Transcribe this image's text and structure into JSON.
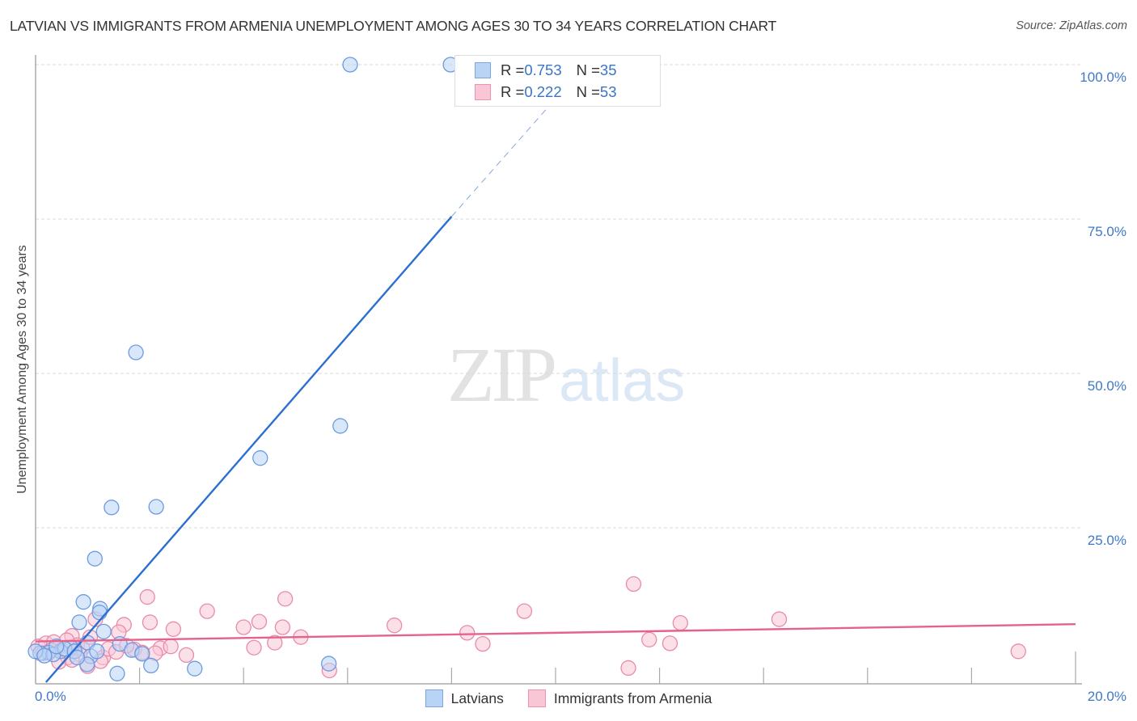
{
  "header": {
    "title": "LATVIAN VS IMMIGRANTS FROM ARMENIA UNEMPLOYMENT AMONG AGES 30 TO 34 YEARS CORRELATION CHART",
    "source": "Source: ZipAtlas.com"
  },
  "watermark": {
    "zip": "ZIP",
    "atlas": "atlas"
  },
  "axes": {
    "y_label": "Unemployment Among Ages 30 to 34 years",
    "y_ticks": [
      "100.0%",
      "75.0%",
      "50.0%",
      "25.0%"
    ],
    "x_min_label": "0.0%",
    "x_max_label": "20.0%"
  },
  "legend": {
    "series": [
      {
        "r_label": "R = ",
        "r_value": "0.753",
        "n_label": "N = ",
        "n_value": "35"
      },
      {
        "r_label": "R = ",
        "r_value": "0.222",
        "n_label": "N = ",
        "n_value": "53"
      }
    ],
    "bottom": [
      "Latvians",
      "Immigrants from Armenia"
    ]
  },
  "colors": {
    "blue_fill": "#b9d3f5",
    "blue_stroke": "#6b9be0",
    "blue_line": "#2b6fd1",
    "pink_fill": "#fac6d6",
    "pink_stroke": "#e98aab",
    "pink_line": "#e4628c",
    "tick_text": "#3f78c9"
  },
  "chart_data": {
    "type": "scatter",
    "title": "LATVIAN VS IMMIGRANTS FROM ARMENIA UNEMPLOYMENT AMONG AGES 30 TO 34 YEARS CORRELATION CHART",
    "xlabel": "",
    "ylabel": "Unemployment Among Ages 30 to 34 years",
    "xlim": [
      0,
      20
    ],
    "ylim": [
      0,
      100
    ],
    "x_ticks": [
      0,
      2,
      4,
      6,
      8,
      10,
      12,
      14,
      16,
      18,
      20
    ],
    "x_tick_labels_shown": [
      "0.0%",
      "20.0%"
    ],
    "y_ticks": [
      25,
      50,
      75,
      100
    ],
    "y_tick_labels": [
      "25.0%",
      "50.0%",
      "75.0%",
      "100.0%"
    ],
    "grid": "horizontal dashed at y ticks",
    "legend_position": "top-center (stats) and bottom-center (series names)",
    "series": [
      {
        "name": "Latvians",
        "R": 0.753,
        "N": 35,
        "trendline": {
          "x0": 0.2,
          "y0": 0.0,
          "x1": 8.0,
          "y1": 75.4,
          "dashed_extension_to": [
            10.0,
            94.5
          ]
        },
        "points": [
          [
            6.05,
            100
          ],
          [
            7.98,
            100
          ],
          [
            1.93,
            53.4
          ],
          [
            5.86,
            41.5
          ],
          [
            4.32,
            36.3
          ],
          [
            1.46,
            28.3
          ],
          [
            2.32,
            28.4
          ],
          [
            1.14,
            20.0
          ],
          [
            0.92,
            13.0
          ],
          [
            1.24,
            11.9
          ],
          [
            1.23,
            11.3
          ],
          [
            0.84,
            9.7
          ],
          [
            1.31,
            8.2
          ],
          [
            1.62,
            6.2
          ],
          [
            1.85,
            5.2
          ],
          [
            1.0,
            6.4
          ],
          [
            0.68,
            5.6
          ],
          [
            0.48,
            5.0
          ],
          [
            0.25,
            4.8
          ],
          [
            0.09,
            4.7
          ],
          [
            0.0,
            5.0
          ],
          [
            0.34,
            4.5
          ],
          [
            0.56,
            5.4
          ],
          [
            0.75,
            5.0
          ],
          [
            1.06,
            4.2
          ],
          [
            2.05,
            4.6
          ],
          [
            0.99,
            2.9
          ],
          [
            1.57,
            1.4
          ],
          [
            2.22,
            2.7
          ],
          [
            3.06,
            2.2
          ],
          [
            5.64,
            3.0
          ],
          [
            0.17,
            4.3
          ],
          [
            0.4,
            5.8
          ],
          [
            0.8,
            4.0
          ],
          [
            1.18,
            5.0
          ]
        ]
      },
      {
        "name": "Immigrants from Armenia",
        "R": 0.222,
        "N": 53,
        "trendline": {
          "x0": 0.0,
          "y0": 6.6,
          "x1": 20.0,
          "y1": 9.4
        },
        "points": [
          [
            0.05,
            5.8
          ],
          [
            0.2,
            6.3
          ],
          [
            0.35,
            6.5
          ],
          [
            0.5,
            5.2
          ],
          [
            0.62,
            4.0
          ],
          [
            0.7,
            7.5
          ],
          [
            0.8,
            6.0
          ],
          [
            0.9,
            5.5
          ],
          [
            1.05,
            7.3
          ],
          [
            1.15,
            10.2
          ],
          [
            1.0,
            2.6
          ],
          [
            1.3,
            4.0
          ],
          [
            1.4,
            5.4
          ],
          [
            1.55,
            4.9
          ],
          [
            1.7,
            9.3
          ],
          [
            1.9,
            5.3
          ],
          [
            2.05,
            4.8
          ],
          [
            2.15,
            13.8
          ],
          [
            2.2,
            9.7
          ],
          [
            2.4,
            5.5
          ],
          [
            2.6,
            5.8
          ],
          [
            2.65,
            8.6
          ],
          [
            2.9,
            4.4
          ],
          [
            3.3,
            11.5
          ],
          [
            4.0,
            8.9
          ],
          [
            4.2,
            5.6
          ],
          [
            4.3,
            9.8
          ],
          [
            4.6,
            6.4
          ],
          [
            4.75,
            8.9
          ],
          [
            4.8,
            13.5
          ],
          [
            5.1,
            7.3
          ],
          [
            5.65,
            1.9
          ],
          [
            6.9,
            9.2
          ],
          [
            8.3,
            8.0
          ],
          [
            8.6,
            6.2
          ],
          [
            9.4,
            11.5
          ],
          [
            11.5,
            15.9
          ],
          [
            11.4,
            2.3
          ],
          [
            11.8,
            6.9
          ],
          [
            12.2,
            6.3
          ],
          [
            12.4,
            9.6
          ],
          [
            14.3,
            10.2
          ],
          [
            18.9,
            5.0
          ],
          [
            0.15,
            4.7
          ],
          [
            0.45,
            3.3
          ],
          [
            0.6,
            6.8
          ],
          [
            0.85,
            4.5
          ],
          [
            1.25,
            3.4
          ],
          [
            1.75,
            5.9
          ],
          [
            2.3,
            4.7
          ],
          [
            0.3,
            5.2
          ],
          [
            1.6,
            8.1
          ],
          [
            0.7,
            3.6
          ]
        ]
      }
    ]
  }
}
